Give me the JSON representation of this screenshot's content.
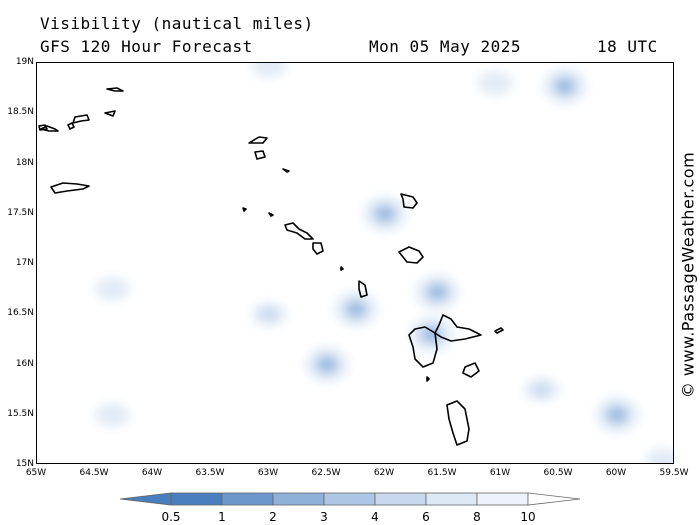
{
  "header": {
    "title": "Visibility (nautical miles)",
    "subtitle": "GFS 120 Hour Forecast",
    "date": "Mon 05 May 2025",
    "time": "18 UTC"
  },
  "credit": "© www.PassageWeather.com",
  "axes": {
    "lat_labels": [
      "19N",
      "18.5N",
      "18N",
      "17.5N",
      "17N",
      "16.5N",
      "16N",
      "15.5N",
      "15N"
    ],
    "lat_values": [
      19,
      18.5,
      18,
      17.5,
      17,
      16.5,
      16,
      15.5,
      15
    ],
    "lon_labels": [
      "65W",
      "64.5W",
      "64W",
      "63.5W",
      "63W",
      "62.5W",
      "62W",
      "61.5W",
      "61W",
      "60.5W",
      "60W",
      "59.5W"
    ],
    "lon_values": [
      -65,
      -64.5,
      -64,
      -63.5,
      -63,
      -62.5,
      -62,
      -61.5,
      -61,
      -60.5,
      -60,
      -59.5
    ],
    "lat_range": [
      15,
      19
    ],
    "lon_range": [
      -65,
      -59.5
    ]
  },
  "legend": {
    "labels": [
      "0.5",
      "1",
      "2",
      "3",
      "4",
      "6",
      "8",
      "10"
    ],
    "colors": [
      "#4a7fbf",
      "#6b97cc",
      "#8fb0d9",
      "#aec6e5",
      "#c8d9ee",
      "#dde8f5",
      "#eef3fa"
    ]
  },
  "chart_data": {
    "type": "heatmap",
    "title": "Visibility (nautical miles)",
    "xlabel": "",
    "ylabel": "",
    "xlim": [
      -65,
      -59.5
    ],
    "ylim": [
      15,
      19
    ],
    "reduced_visibility_areas": [
      {
        "lon": -62.0,
        "lat": 17.5,
        "level": 4
      },
      {
        "lon": -61.55,
        "lat": 16.72,
        "level": 4
      },
      {
        "lon": -62.25,
        "lat": 16.55,
        "level": 4
      },
      {
        "lon": -62.5,
        "lat": 16.0,
        "level": 4
      },
      {
        "lon": -61.6,
        "lat": 16.3,
        "level": 4
      },
      {
        "lon": -60.45,
        "lat": 18.77,
        "level": 4
      },
      {
        "lon": -60.0,
        "lat": 15.5,
        "level": 4
      },
      {
        "lon": -60.65,
        "lat": 15.75,
        "level": 6
      },
      {
        "lon": -64.35,
        "lat": 16.75,
        "level": 8
      },
      {
        "lon": -63.0,
        "lat": 16.5,
        "level": 6
      },
      {
        "lon": -63.0,
        "lat": 18.97,
        "level": 8
      },
      {
        "lon": -61.05,
        "lat": 18.8,
        "level": 8
      },
      {
        "lon": -64.35,
        "lat": 15.5,
        "level": 8
      },
      {
        "lon": -59.6,
        "lat": 15.05,
        "level": 8
      }
    ]
  }
}
